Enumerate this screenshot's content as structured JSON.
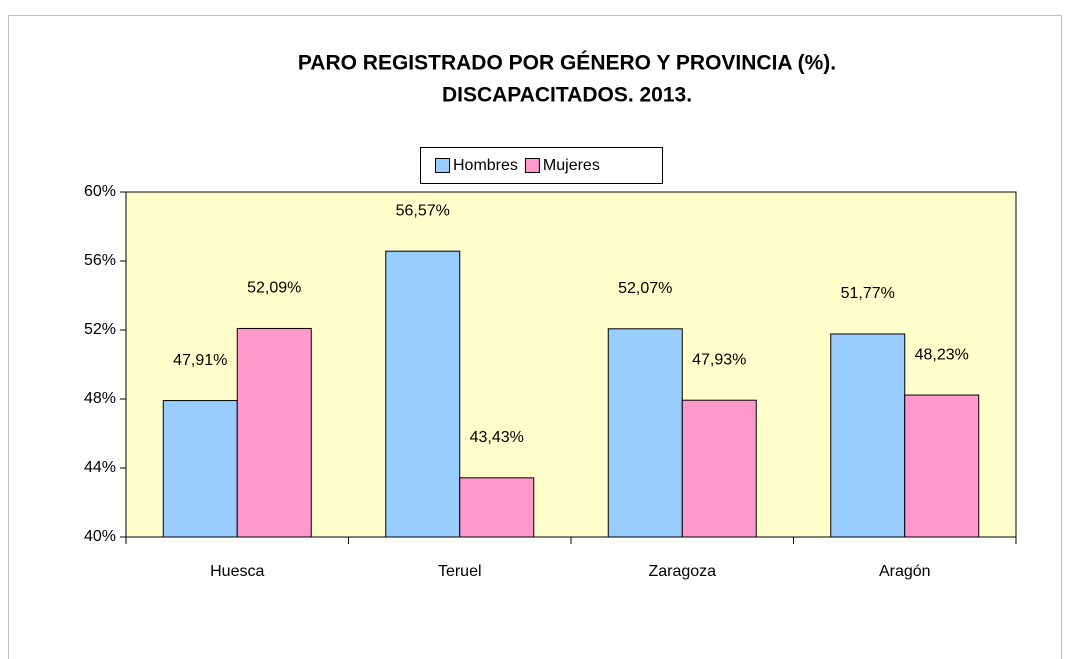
{
  "chart_data": {
    "type": "bar",
    "title": [
      "PARO REGISTRADO POR GÉNERO Y PROVINCIA (%).",
      "DISCAPACITADOS. 2013."
    ],
    "categories": [
      "Huesca",
      "Teruel",
      "Zaragoza",
      "Aragón"
    ],
    "series": [
      {
        "name": "Hombres",
        "color": "#99ccff",
        "values": [
          47.91,
          56.57,
          52.07,
          51.77
        ],
        "value_labels": [
          "47,91%",
          "56,57%",
          "52,07%",
          "51,77%"
        ]
      },
      {
        "name": "Mujeres",
        "color": "#ff99cc",
        "values": [
          52.09,
          43.43,
          47.93,
          48.23
        ],
        "value_labels": [
          "52,09%",
          "43,43%",
          "47,93%",
          "48,23%"
        ]
      }
    ],
    "ylim": [
      40,
      60
    ],
    "yticks": [
      {
        "value": 40,
        "label": "40%"
      },
      {
        "value": 44,
        "label": "44%"
      },
      {
        "value": 48,
        "label": "48%"
      },
      {
        "value": 52,
        "label": "52%"
      },
      {
        "value": 56,
        "label": "56%"
      },
      {
        "value": 60,
        "label": "60%"
      }
    ],
    "plot_background": "#ffffcc",
    "legend": "top"
  }
}
